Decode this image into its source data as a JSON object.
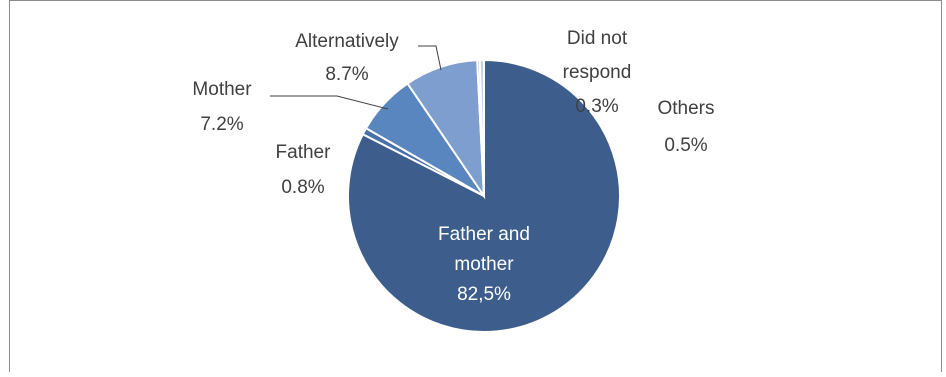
{
  "chart_data": {
    "type": "pie",
    "slices": [
      {
        "label": "Father and mother",
        "display": "82,5%",
        "value": 82.5,
        "color": "#3d5e8c"
      },
      {
        "label": "Father",
        "display": "0.8%",
        "value": 0.8,
        "color": "#4670a6"
      },
      {
        "label": "Mother",
        "display": "7.2%",
        "value": 7.2,
        "color": "#5a86bf"
      },
      {
        "label": "Alternatively",
        "display": "8.7%",
        "value": 8.7,
        "color": "#7e9ecf"
      },
      {
        "label": "Did not respond",
        "display": "0.3%",
        "value": 0.3,
        "color": "#a9bddf"
      },
      {
        "label": "Others",
        "display": "0.5%",
        "value": 0.5,
        "color": "#c7d3ea"
      }
    ],
    "labels": {
      "father_mother_1": "Father and",
      "father_mother_2": "mother",
      "father_mother_pct": "82,5%",
      "father": "Father",
      "father_pct": "0.8%",
      "mother": "Mother",
      "mother_pct": "7.2%",
      "alternatively": "Alternatively",
      "alternatively_pct": "8.7%",
      "dnr_1": "Did not",
      "dnr_2": "respond",
      "dnr_pct": "0.3%",
      "others": "Others",
      "others_pct": "0.5%"
    }
  }
}
